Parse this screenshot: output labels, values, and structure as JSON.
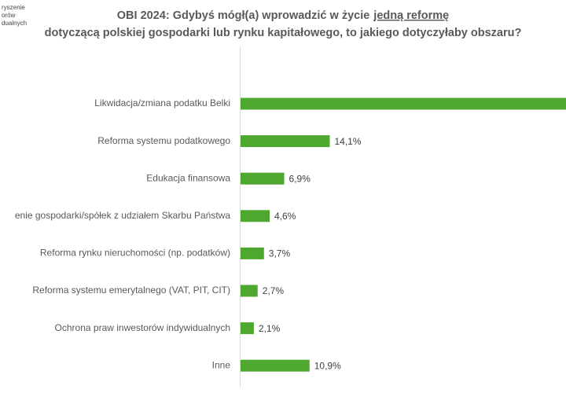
{
  "logo_text": [
    "ryszenie",
    "orów",
    "dualnych"
  ],
  "chart_data": {
    "type": "barh",
    "title": [
      "OBI 2024: Gdybyś mógł(a) wprowadzić w życie",
      "jedną reformę",
      "dotyczącą polskiej gospodarki lub rynku kapitałowego, to jakiego dotyczyłaby obszaru?"
    ],
    "categories": [
      "Likwidacja/zmiana podatku Belki",
      "Reforma systemu podatkowego",
      "Edukacja finansowa",
      "enie gospodarki/spółek z udziałem Skarbu Państwa",
      "Reforma rynku nieruchomości (np. podatków)",
      "Reforma systemu emerytalnego (VAT, PIT, CIT)",
      "Ochrona praw inwestorów indywidualnych",
      "Inne"
    ],
    "values": [
      52,
      14.1,
      6.9,
      4.6,
      3.7,
      2.7,
      2.1,
      10.9
    ],
    "value_labels": [
      null,
      "14,1%",
      "6,9%",
      "4,6%",
      "3,7%",
      "2,7%",
      "2,1%",
      "10,9%"
    ],
    "color": "#4ea72e"
  }
}
